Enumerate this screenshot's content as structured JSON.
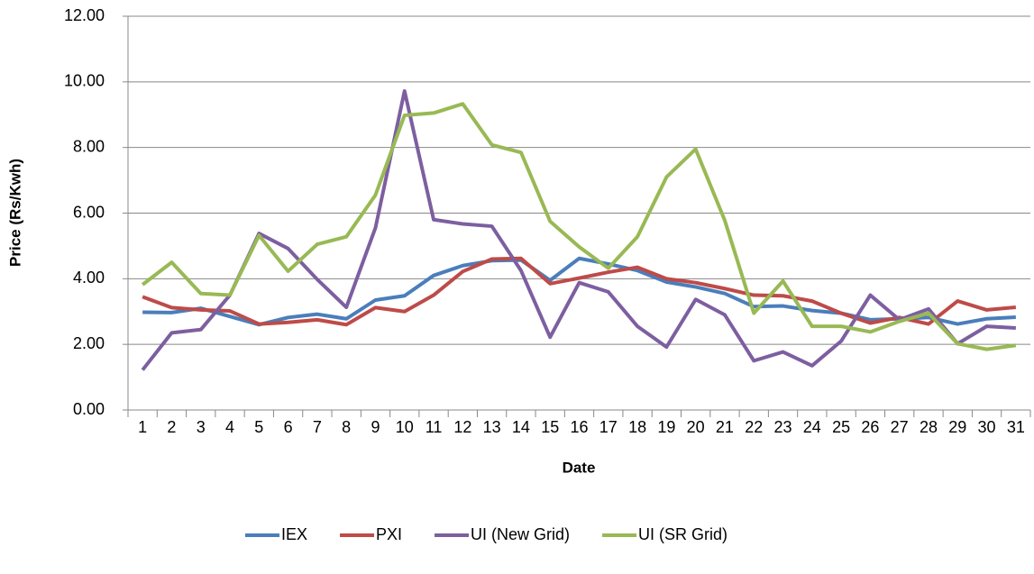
{
  "chart_data": {
    "type": "line",
    "x_label": "Date",
    "y_label": "Price (Rs/Kwh)",
    "categories": [
      "1",
      "2",
      "3",
      "4",
      "5",
      "6",
      "7",
      "8",
      "9",
      "10",
      "11",
      "12",
      "13",
      "14",
      "15",
      "16",
      "17",
      "18",
      "19",
      "20",
      "21",
      "22",
      "23",
      "24",
      "25",
      "26",
      "27",
      "28",
      "29",
      "30",
      "31"
    ],
    "series": [
      {
        "name": "IEX",
        "color": "#4a7ebb",
        "values": [
          2.98,
          2.97,
          3.1,
          2.85,
          2.6,
          2.82,
          2.92,
          2.78,
          3.35,
          3.48,
          4.1,
          4.4,
          4.55,
          4.57,
          3.95,
          4.62,
          4.45,
          4.25,
          3.9,
          3.75,
          3.55,
          3.15,
          3.17,
          3.03,
          2.95,
          2.75,
          2.78,
          2.82,
          2.62,
          2.78,
          2.83
        ]
      },
      {
        "name": "PXI",
        "color": "#be4b48",
        "values": [
          3.45,
          3.12,
          3.05,
          3.02,
          2.62,
          2.67,
          2.75,
          2.6,
          3.12,
          3.0,
          3.5,
          4.22,
          4.6,
          4.62,
          3.85,
          4.02,
          4.2,
          4.35,
          4.0,
          3.88,
          3.7,
          3.5,
          3.48,
          3.32,
          2.95,
          2.65,
          2.82,
          2.62,
          3.32,
          3.05,
          3.13
        ]
      },
      {
        "name": "UI (New Grid)",
        "color": "#7d5fa0",
        "values": [
          1.22,
          2.35,
          2.45,
          3.5,
          5.38,
          4.92,
          3.98,
          3.13,
          5.55,
          9.72,
          5.8,
          5.67,
          5.6,
          4.25,
          2.22,
          3.88,
          3.6,
          2.55,
          1.92,
          3.37,
          2.9,
          1.5,
          1.77,
          1.35,
          2.1,
          3.5,
          2.75,
          3.08,
          2.02,
          2.55,
          2.5
        ]
      },
      {
        "name": "UI (SR Grid)",
        "color": "#98b954",
        "values": [
          3.82,
          4.5,
          3.55,
          3.5,
          5.32,
          4.23,
          5.05,
          5.28,
          6.55,
          8.98,
          9.05,
          9.33,
          8.08,
          7.85,
          5.75,
          4.97,
          4.32,
          5.28,
          7.1,
          7.95,
          5.78,
          2.95,
          3.93,
          2.55,
          2.55,
          2.38,
          2.7,
          2.95,
          2.02,
          1.85,
          1.97
        ]
      }
    ],
    "ylim": [
      0,
      12
    ],
    "yticks": [
      {
        "value": 0,
        "label": "0.00"
      },
      {
        "value": 2,
        "label": "2.00"
      },
      {
        "value": 4,
        "label": "4.00"
      },
      {
        "value": 6,
        "label": "6.00"
      },
      {
        "value": 8,
        "label": "8.00"
      },
      {
        "value": 10,
        "label": "10.00"
      },
      {
        "value": 12,
        "label": "12.00"
      }
    ],
    "grid": true,
    "legend": "bottom"
  }
}
